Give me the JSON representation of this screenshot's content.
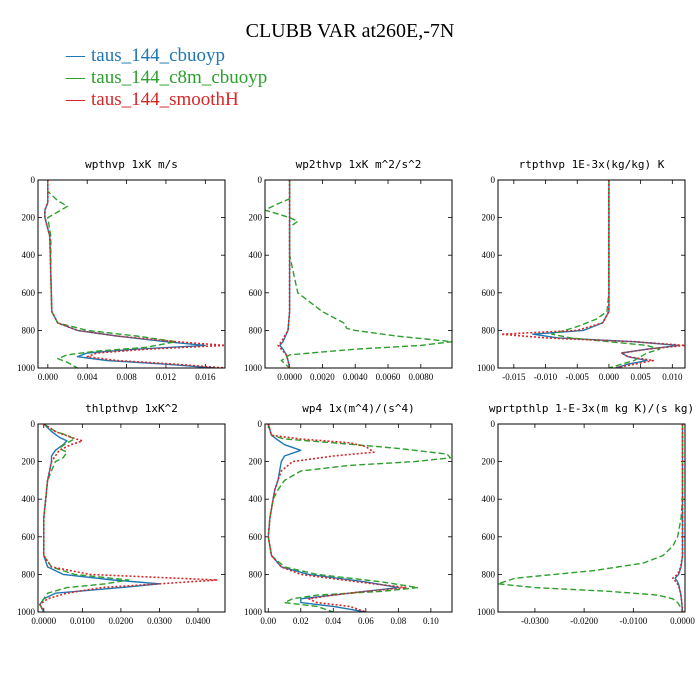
{
  "title": "CLUBB VAR at260E,-7N",
  "legend": [
    {
      "name": "taus_144_cbuoyp",
      "color": "#1f77b4"
    },
    {
      "name": "taus_144_c8m_cbuoyp",
      "color": "#2ca02c"
    },
    {
      "name": "taus_144_smoothH",
      "color": "#d62728"
    }
  ],
  "chart_data": [
    {
      "type": "line",
      "title": "wpthvp   1xK m/s",
      "xlim": [
        -0.001,
        0.018
      ],
      "ylim": [
        1000,
        0
      ],
      "xticks": [
        0.0,
        0.004,
        0.008,
        0.012,
        0.016
      ],
      "xtick_labels": [
        "0.000",
        "0.004",
        "0.008",
        "0.012",
        "0.016"
      ],
      "yticks": [
        0,
        200,
        400,
        600,
        800,
        1000
      ],
      "series": [
        {
          "name": "taus_144_cbuoyp",
          "y": [
            0,
            60,
            120,
            160,
            200,
            300,
            500,
            700,
            760,
            800,
            830,
            860,
            880,
            900,
            920,
            940,
            960,
            980,
            1000
          ],
          "x": [
            0.0,
            0.0,
            0.0,
            -0.0003,
            -0.0003,
            0.0002,
            0.0003,
            0.0004,
            0.001,
            0.003,
            0.007,
            0.012,
            0.016,
            0.009,
            0.004,
            0.003,
            0.006,
            0.012,
            0.017
          ]
        },
        {
          "name": "taus_144_c8m_cbuoyp",
          "y": [
            0,
            60,
            110,
            140,
            170,
            200,
            300,
            500,
            700,
            760,
            800,
            830,
            860,
            890,
            910,
            930,
            950,
            970,
            1000
          ],
          "x": [
            0.0,
            0.0,
            0.001,
            0.002,
            0.001,
            0.0,
            0.0003,
            0.0003,
            0.0004,
            0.001,
            0.004,
            0.009,
            0.013,
            0.01,
            0.005,
            0.002,
            0.001,
            0.002,
            0.003
          ]
        },
        {
          "name": "taus_144_smoothH",
          "y": [
            0,
            60,
            120,
            160,
            200,
            300,
            500,
            700,
            760,
            800,
            830,
            860,
            880,
            900,
            920,
            940,
            960,
            980,
            1000
          ],
          "x": [
            0.0,
            0.0,
            0.0,
            -0.0003,
            -0.0003,
            0.0002,
            0.0003,
            0.0004,
            0.001,
            0.003,
            0.007,
            0.013,
            0.018,
            0.01,
            0.005,
            0.004,
            0.007,
            0.013,
            0.018
          ]
        }
      ]
    },
    {
      "type": "line",
      "title": "wp2thvp   1xK m^2/s^2",
      "xlim": [
        -0.0015,
        0.0099
      ],
      "ylim": [
        1000,
        0
      ],
      "xticks": [
        0.0,
        0.002,
        0.004,
        0.006,
        0.008
      ],
      "xtick_labels": [
        "0.0000",
        "0.0020",
        "0.0040",
        "0.0060",
        "0.0080"
      ],
      "yticks": [
        0,
        200,
        400,
        600,
        800,
        1000
      ],
      "series": [
        {
          "name": "taus_144_cbuoyp",
          "y": [
            0,
            100,
            200,
            400,
            600,
            700,
            800,
            860,
            880,
            900,
            930,
            960,
            1000
          ],
          "x": [
            0.0,
            0.0,
            0.0,
            0.0,
            0.0,
            0.0,
            -0.0001,
            -0.0004,
            -0.0006,
            -0.0004,
            -0.0002,
            -0.0001,
            0.0
          ]
        },
        {
          "name": "taus_144_c8m_cbuoyp",
          "y": [
            0,
            100,
            130,
            160,
            200,
            220,
            250,
            400,
            600,
            700,
            760,
            790,
            800,
            830,
            860,
            880,
            900,
            930,
            960,
            1000
          ],
          "x": [
            0.0,
            0.0,
            -0.0008,
            -0.0015,
            0.0,
            0.0005,
            0.0,
            0.0,
            0.0005,
            0.002,
            0.0033,
            0.0035,
            0.004,
            0.0065,
            0.0099,
            0.008,
            0.004,
            0.0,
            -0.0005,
            0.0
          ]
        },
        {
          "name": "taus_144_smoothH",
          "y": [
            0,
            100,
            200,
            400,
            600,
            700,
            800,
            860,
            880,
            900,
            930,
            960,
            1000
          ],
          "x": [
            0.0,
            0.0,
            0.0,
            0.0,
            0.0,
            0.0,
            -0.0001,
            -0.0005,
            -0.0007,
            -0.0005,
            -0.0002,
            -0.0001,
            0.0
          ]
        }
      ]
    },
    {
      "type": "line",
      "title": "rtpthvp   1E-3x(kg/kg) K",
      "xlim": [
        -0.0175,
        0.012
      ],
      "ylim": [
        1000,
        0
      ],
      "xticks": [
        -0.015,
        -0.01,
        -0.005,
        0.0,
        0.005,
        0.01
      ],
      "xtick_labels": [
        "-0.015",
        "-0.010",
        "-0.005",
        "0.000",
        "0.005",
        "0.010"
      ],
      "yticks": [
        0,
        200,
        400,
        600,
        800,
        1000
      ],
      "series": [
        {
          "name": "taus_144_cbuoyp",
          "y": [
            0,
            200,
            400,
            600,
            700,
            760,
            800,
            820,
            840,
            860,
            880,
            900,
            920,
            940,
            960,
            980,
            1000
          ],
          "x": [
            0.0,
            0.0,
            0.0,
            0.0,
            0.0,
            -0.001,
            -0.004,
            -0.012,
            -0.008,
            0.004,
            0.011,
            0.006,
            0.002,
            0.003,
            0.006,
            0.003,
            0.001
          ]
        },
        {
          "name": "taus_144_c8m_cbuoyp",
          "y": [
            0,
            200,
            400,
            600,
            700,
            740,
            780,
            800,
            820,
            840,
            860,
            880,
            900,
            920,
            940,
            960,
            980,
            1000
          ],
          "x": [
            0.0,
            0.0,
            0.0,
            0.0,
            -0.0003,
            -0.002,
            -0.005,
            -0.007,
            -0.009,
            -0.006,
            0.0,
            0.006,
            0.008,
            0.006,
            0.005,
            0.004,
            0.002,
            0.0
          ]
        },
        {
          "name": "taus_144_smoothH",
          "y": [
            0,
            200,
            400,
            600,
            700,
            760,
            800,
            820,
            840,
            860,
            880,
            900,
            920,
            940,
            960,
            980,
            1000
          ],
          "x": [
            0.0,
            0.0,
            0.0,
            0.0,
            0.0,
            -0.001,
            -0.005,
            -0.017,
            -0.01,
            0.004,
            0.012,
            0.006,
            0.002,
            0.003,
            0.007,
            0.004,
            0.001
          ]
        }
      ]
    },
    {
      "type": "line",
      "title": "thlpthvp   1xK^2",
      "xlim": [
        -0.0015,
        0.047
      ],
      "ylim": [
        1000,
        0
      ],
      "xticks": [
        0.0,
        0.01,
        0.02,
        0.03,
        0.04
      ],
      "xtick_labels": [
        "0.0000",
        "0.0100",
        "0.0200",
        "0.0300",
        "0.0400"
      ],
      "yticks": [
        0,
        200,
        400,
        600,
        800,
        1000
      ],
      "series": [
        {
          "name": "taus_144_cbuoyp",
          "y": [
            0,
            40,
            70,
            90,
            110,
            140,
            170,
            200,
            300,
            500,
            700,
            760,
            800,
            830,
            850,
            870,
            900,
            930,
            960,
            1000
          ],
          "x": [
            0.0,
            0.002,
            0.004,
            0.006,
            0.005,
            0.003,
            0.002,
            0.002,
            0.001,
            0.0,
            0.0,
            0.001,
            0.005,
            0.018,
            0.03,
            0.02,
            0.003,
            0.0,
            -0.001,
            0.0
          ]
        },
        {
          "name": "taus_144_c8m_cbuoyp",
          "y": [
            0,
            40,
            60,
            80,
            100,
            130,
            150,
            180,
            200,
            300,
            500,
            700,
            760,
            800,
            830,
            850,
            870,
            900,
            930,
            960,
            1000
          ],
          "x": [
            0.0,
            0.003,
            0.006,
            0.008,
            0.006,
            0.004,
            0.006,
            0.005,
            0.003,
            0.001,
            0.0,
            0.0,
            0.002,
            0.008,
            0.022,
            0.016,
            0.006,
            0.001,
            0.0,
            -0.001,
            0.0
          ]
        },
        {
          "name": "taus_144_smoothH",
          "y": [
            0,
            40,
            70,
            90,
            110,
            140,
            170,
            200,
            300,
            500,
            700,
            760,
            800,
            830,
            850,
            870,
            900,
            930,
            960,
            1000
          ],
          "x": [
            0.0,
            0.003,
            0.007,
            0.01,
            0.007,
            0.004,
            0.003,
            0.002,
            0.001,
            0.0,
            0.0,
            0.002,
            0.012,
            0.045,
            0.03,
            0.015,
            0.006,
            0.001,
            -0.001,
            0.0
          ]
        }
      ]
    },
    {
      "type": "line",
      "title": "wp4   1x(m^4)/(s^4)",
      "xlim": [
        -0.002,
        0.113
      ],
      "ylim": [
        1000,
        0
      ],
      "xticks": [
        0.0,
        0.02,
        0.04,
        0.06,
        0.08,
        0.1
      ],
      "xtick_labels": [
        "0.00",
        "0.02",
        "0.04",
        "0.06",
        "0.08",
        "0.10"
      ],
      "yticks": [
        0,
        200,
        400,
        600,
        800,
        1000
      ],
      "series": [
        {
          "name": "taus_144_cbuoyp",
          "y": [
            0,
            60,
            80,
            110,
            140,
            170,
            200,
            250,
            300,
            350,
            400,
            450,
            500,
            600,
            700,
            760,
            800,
            840,
            870,
            890,
            910,
            930,
            950,
            970,
            1000
          ],
          "x": [
            0.0,
            0.002,
            0.005,
            0.01,
            0.02,
            0.01,
            0.008,
            0.007,
            0.006,
            0.004,
            0.003,
            0.002,
            0.001,
            0.0,
            0.002,
            0.008,
            0.025,
            0.06,
            0.08,
            0.06,
            0.04,
            0.02,
            0.02,
            0.04,
            0.06
          ]
        },
        {
          "name": "taus_144_c8m_cbuoyp",
          "y": [
            0,
            60,
            80,
            100,
            130,
            160,
            180,
            200,
            220,
            250,
            300,
            350,
            400,
            500,
            600,
            700,
            760,
            800,
            840,
            870,
            890,
            910,
            930,
            950,
            970,
            1000
          ],
          "x": [
            0.0,
            0.002,
            0.01,
            0.04,
            0.08,
            0.11,
            0.112,
            0.09,
            0.05,
            0.02,
            0.01,
            0.006,
            0.003,
            0.001,
            0.0,
            0.002,
            0.01,
            0.03,
            0.07,
            0.092,
            0.07,
            0.03,
            0.015,
            0.01,
            0.03,
            0.04
          ]
        },
        {
          "name": "taus_144_smoothH",
          "y": [
            0,
            60,
            80,
            100,
            120,
            150,
            170,
            200,
            250,
            300,
            350,
            400,
            450,
            500,
            600,
            700,
            760,
            800,
            840,
            870,
            890,
            910,
            930,
            950,
            970,
            1000
          ],
          "x": [
            0.0,
            0.002,
            0.02,
            0.05,
            0.06,
            0.065,
            0.04,
            0.015,
            0.008,
            0.006,
            0.004,
            0.003,
            0.002,
            0.001,
            0.0,
            0.002,
            0.008,
            0.02,
            0.055,
            0.085,
            0.06,
            0.04,
            0.025,
            0.03,
            0.05,
            0.06
          ]
        }
      ]
    },
    {
      "type": "line",
      "title": "wprtpthlp   1-E-3x(m kg K)/(s kg)",
      "xlim": [
        -0.0375,
        0.0005
      ],
      "ylim": [
        1000,
        0
      ],
      "xticks": [
        -0.03,
        -0.02,
        -0.01,
        0.0
      ],
      "xtick_labels": [
        "-0.0300",
        "-0.0200",
        "-0.0100",
        "0.0000"
      ],
      "yticks": [
        0,
        200,
        400,
        600,
        800,
        1000
      ],
      "series": [
        {
          "name": "taus_144_cbuoyp",
          "y": [
            0,
            200,
            400,
            600,
            700,
            760,
            800,
            820,
            840,
            860,
            880,
            900,
            940,
            1000
          ],
          "x": [
            0.0,
            0.0,
            0.0,
            0.0,
            0.0,
            -0.0003,
            -0.0008,
            -0.0015,
            -0.001,
            -0.0007,
            -0.0006,
            -0.0004,
            -0.0002,
            0.0
          ]
        },
        {
          "name": "taus_144_c8m_cbuoyp",
          "y": [
            0,
            200,
            400,
            500,
            600,
            650,
            700,
            740,
            780,
            800,
            820,
            850,
            870,
            890,
            910,
            930,
            950,
            970,
            1000
          ],
          "x": [
            0.0,
            0.0,
            0.0,
            -0.0003,
            -0.001,
            -0.002,
            -0.004,
            -0.008,
            -0.018,
            -0.026,
            -0.034,
            -0.0375,
            -0.03,
            -0.015,
            -0.005,
            -0.002,
            -0.001,
            -0.0005,
            0.0
          ]
        },
        {
          "name": "taus_144_smoothH",
          "y": [
            0,
            200,
            400,
            600,
            700,
            760,
            800,
            820,
            840,
            860,
            880,
            900,
            940,
            1000
          ],
          "x": [
            0.0,
            0.0,
            0.0,
            0.0,
            0.0,
            -0.0004,
            -0.001,
            -0.002,
            -0.0013,
            -0.0008,
            -0.0006,
            -0.0004,
            -0.0002,
            0.0
          ]
        }
      ]
    }
  ]
}
